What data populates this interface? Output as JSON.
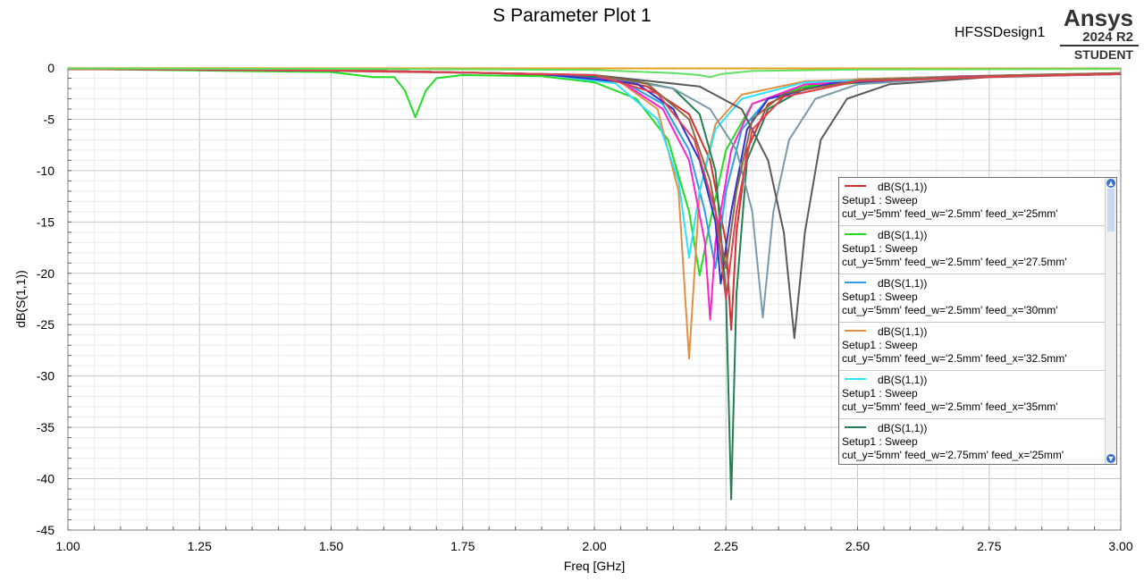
{
  "header": {
    "title": "S Parameter Plot 1",
    "design": "HFSSDesign1",
    "logo": {
      "name": "Ansys",
      "version": "2024 R2",
      "edition": "STUDENT"
    }
  },
  "chart_data": {
    "type": "line",
    "xlabel": "Freq [GHz]",
    "ylabel": "dB(S(1,1))",
    "xlim": [
      1.0,
      3.0
    ],
    "ylim": [
      -45,
      0
    ],
    "xticks": [
      "1.00",
      "1.25",
      "1.50",
      "1.75",
      "2.00",
      "2.25",
      "2.50",
      "2.75",
      "3.00"
    ],
    "yticks": [
      "0",
      "-5",
      "-10",
      "-15",
      "-20",
      "-25",
      "-30",
      "-35",
      "-40",
      "-45"
    ],
    "grid": true,
    "legend_position": "right",
    "series": [
      {
        "name": "dB(S(1,1))",
        "setup": "Setup1 : Sweep",
        "params": "cut_y='5mm' feed_w='2.5mm' feed_x='25mm'",
        "color": "#d03030",
        "points": [
          [
            1.0,
            -0.1
          ],
          [
            1.5,
            -0.3
          ],
          [
            1.8,
            -0.5
          ],
          [
            2.0,
            -0.9
          ],
          [
            2.1,
            -1.8
          ],
          [
            2.18,
            -4.5
          ],
          [
            2.22,
            -9
          ],
          [
            2.25,
            -17
          ],
          [
            2.26,
            -25.5
          ],
          [
            2.27,
            -16
          ],
          [
            2.29,
            -8
          ],
          [
            2.33,
            -3.5
          ],
          [
            2.4,
            -1.8
          ],
          [
            2.5,
            -1.1
          ],
          [
            2.7,
            -0.8
          ],
          [
            3.0,
            -0.5
          ]
        ]
      },
      {
        "name": "dB(S(1,1))",
        "setup": "Setup1 : Sweep",
        "params": "cut_y='5mm' feed_w='2.5mm' feed_x='27.5mm'",
        "color": "#22dd22",
        "points": [
          [
            1.0,
            -0.1
          ],
          [
            1.5,
            -0.4
          ],
          [
            1.58,
            -0.9
          ],
          [
            1.62,
            -0.9
          ],
          [
            1.64,
            -2.2
          ],
          [
            1.66,
            -4.8
          ],
          [
            1.68,
            -2.2
          ],
          [
            1.7,
            -1
          ],
          [
            1.75,
            -0.7
          ],
          [
            1.9,
            -0.8
          ],
          [
            2.0,
            -1.4
          ],
          [
            2.08,
            -3
          ],
          [
            2.14,
            -7
          ],
          [
            2.18,
            -14
          ],
          [
            2.2,
            -20.2
          ],
          [
            2.22,
            -15
          ],
          [
            2.25,
            -8
          ],
          [
            2.3,
            -3.5
          ],
          [
            2.4,
            -1.8
          ],
          [
            2.6,
            -1.1
          ],
          [
            2.8,
            -0.8
          ],
          [
            3.0,
            -0.6
          ]
        ]
      },
      {
        "name": "dB(S(1,1))",
        "setup": "Setup1 : Sweep",
        "params": "cut_y='5mm' feed_w='2.5mm' feed_x='30mm'",
        "color": "#2aa0e8",
        "points": [
          [
            1.0,
            -0.1
          ],
          [
            1.6,
            -0.3
          ],
          [
            1.9,
            -0.6
          ],
          [
            2.05,
            -1.2
          ],
          [
            2.13,
            -3.5
          ],
          [
            2.18,
            -8
          ],
          [
            2.21,
            -14
          ],
          [
            2.23,
            -19.5
          ],
          [
            2.25,
            -12
          ],
          [
            2.28,
            -6
          ],
          [
            2.33,
            -3
          ],
          [
            2.45,
            -1.5
          ],
          [
            2.7,
            -0.9
          ],
          [
            3.0,
            -0.6
          ]
        ]
      },
      {
        "name": "dB(S(1,1))",
        "setup": "Setup1 : Sweep",
        "params": "cut_y='5mm' feed_w='2.5mm' feed_x='32.5mm'",
        "color": "#e09040",
        "points": [
          [
            1.0,
            -0.1
          ],
          [
            1.6,
            -0.3
          ],
          [
            1.9,
            -0.6
          ],
          [
            2.05,
            -1.4
          ],
          [
            2.12,
            -4
          ],
          [
            2.16,
            -12
          ],
          [
            2.18,
            -28.3
          ],
          [
            2.2,
            -12
          ],
          [
            2.23,
            -5.5
          ],
          [
            2.28,
            -2.6
          ],
          [
            2.4,
            -1.3
          ],
          [
            2.7,
            -0.8
          ],
          [
            3.0,
            -0.6
          ]
        ]
      },
      {
        "name": "dB(S(1,1))",
        "setup": "Setup1 : Sweep",
        "params": "cut_y='5mm' feed_w='2.5mm' feed_x='35mm'",
        "color": "#30e0ff",
        "points": [
          [
            1.0,
            -0.1
          ],
          [
            1.6,
            -0.3
          ],
          [
            1.9,
            -0.6
          ],
          [
            2.04,
            -1.5
          ],
          [
            2.12,
            -5
          ],
          [
            2.16,
            -11
          ],
          [
            2.18,
            -18.5
          ],
          [
            2.2,
            -12
          ],
          [
            2.23,
            -6
          ],
          [
            2.28,
            -3
          ],
          [
            2.4,
            -1.4
          ],
          [
            2.7,
            -0.8
          ],
          [
            3.0,
            -0.6
          ]
        ]
      },
      {
        "name": "dB(S(1,1))",
        "setup": "Setup1 : Sweep",
        "params": "cut_y='5mm' feed_w='2.75mm' feed_x='25mm'",
        "color": "#208050",
        "points": [
          [
            1.0,
            -0.1
          ],
          [
            1.6,
            -0.3
          ],
          [
            1.9,
            -0.6
          ],
          [
            2.05,
            -1.0
          ],
          [
            2.15,
            -2
          ],
          [
            2.2,
            -4.5
          ],
          [
            2.23,
            -10
          ],
          [
            2.25,
            -22
          ],
          [
            2.26,
            -42
          ],
          [
            2.27,
            -22
          ],
          [
            2.29,
            -9
          ],
          [
            2.33,
            -4
          ],
          [
            2.4,
            -2
          ],
          [
            2.55,
            -1.1
          ],
          [
            2.8,
            -0.8
          ],
          [
            3.0,
            -0.6
          ]
        ]
      },
      {
        "color": "#ff20d0",
        "points": [
          [
            1.0,
            -0.1
          ],
          [
            1.6,
            -0.3
          ],
          [
            1.9,
            -0.6
          ],
          [
            2.05,
            -1.3
          ],
          [
            2.13,
            -4
          ],
          [
            2.18,
            -9
          ],
          [
            2.21,
            -17
          ],
          [
            2.22,
            -24.5
          ],
          [
            2.23,
            -17
          ],
          [
            2.26,
            -8
          ],
          [
            2.3,
            -3.5
          ],
          [
            2.4,
            -1.6
          ],
          [
            2.7,
            -0.8
          ],
          [
            3.0,
            -0.6
          ]
        ]
      },
      {
        "color": "#3030d0",
        "points": [
          [
            1.0,
            -0.1
          ],
          [
            1.6,
            -0.3
          ],
          [
            1.9,
            -0.6
          ],
          [
            2.08,
            -1.5
          ],
          [
            2.15,
            -4
          ],
          [
            2.2,
            -9
          ],
          [
            2.23,
            -15
          ],
          [
            2.24,
            -21
          ],
          [
            2.26,
            -14
          ],
          [
            2.29,
            -6
          ],
          [
            2.33,
            -3
          ],
          [
            2.45,
            -1.5
          ],
          [
            2.7,
            -0.9
          ],
          [
            3.0,
            -0.6
          ]
        ]
      },
      {
        "color": "#7a9aaa",
        "points": [
          [
            1.0,
            -0.1
          ],
          [
            1.6,
            -0.3
          ],
          [
            2.0,
            -0.7
          ],
          [
            2.15,
            -2
          ],
          [
            2.22,
            -4
          ],
          [
            2.27,
            -8
          ],
          [
            2.3,
            -14
          ],
          [
            2.32,
            -24.3
          ],
          [
            2.34,
            -14
          ],
          [
            2.37,
            -7
          ],
          [
            2.42,
            -3
          ],
          [
            2.5,
            -1.6
          ],
          [
            2.7,
            -0.9
          ],
          [
            3.0,
            -0.6
          ]
        ]
      },
      {
        "color": "#5a5a5a",
        "points": [
          [
            1.0,
            -0.1
          ],
          [
            1.6,
            -0.3
          ],
          [
            2.0,
            -0.7
          ],
          [
            2.2,
            -1.8
          ],
          [
            2.28,
            -4
          ],
          [
            2.33,
            -9
          ],
          [
            2.36,
            -16
          ],
          [
            2.38,
            -26.3
          ],
          [
            2.4,
            -16
          ],
          [
            2.43,
            -7
          ],
          [
            2.48,
            -3
          ],
          [
            2.56,
            -1.6
          ],
          [
            2.75,
            -0.9
          ],
          [
            3.0,
            -0.6
          ]
        ]
      },
      {
        "color": "#8a6a40",
        "points": [
          [
            1.0,
            -0.1
          ],
          [
            1.6,
            -0.3
          ],
          [
            2.0,
            -0.7
          ],
          [
            2.1,
            -1.5
          ],
          [
            2.18,
            -5
          ],
          [
            2.22,
            -11
          ],
          [
            2.25,
            -19.5
          ],
          [
            2.27,
            -12
          ],
          [
            2.3,
            -5
          ],
          [
            2.36,
            -2.5
          ],
          [
            2.5,
            -1.2
          ],
          [
            2.8,
            -0.7
          ],
          [
            3.0,
            -0.5
          ]
        ]
      },
      {
        "color": "#e04050",
        "points": [
          [
            1.0,
            -0.1
          ],
          [
            1.6,
            -0.3
          ],
          [
            2.0,
            -0.7
          ],
          [
            2.12,
            -2.5
          ],
          [
            2.19,
            -7
          ],
          [
            2.23,
            -14
          ],
          [
            2.25,
            -22.5
          ],
          [
            2.27,
            -14
          ],
          [
            2.3,
            -6
          ],
          [
            2.36,
            -2.8
          ],
          [
            2.5,
            -1.3
          ],
          [
            2.8,
            -0.8
          ],
          [
            3.0,
            -0.6
          ]
        ]
      },
      {
        "color": "#e8a020",
        "points": [
          [
            1.0,
            -0.02
          ],
          [
            2.0,
            -0.04
          ],
          [
            3.0,
            -0.05
          ]
        ]
      },
      {
        "color": "#60e060",
        "points": [
          [
            1.0,
            -0.05
          ],
          [
            1.6,
            -0.1
          ],
          [
            2.0,
            -0.2
          ],
          [
            2.15,
            -0.5
          ],
          [
            2.2,
            -0.7
          ],
          [
            2.22,
            -0.9
          ],
          [
            2.24,
            -0.6
          ],
          [
            2.3,
            -0.3
          ],
          [
            2.5,
            -0.15
          ],
          [
            3.0,
            -0.1
          ]
        ]
      }
    ]
  }
}
